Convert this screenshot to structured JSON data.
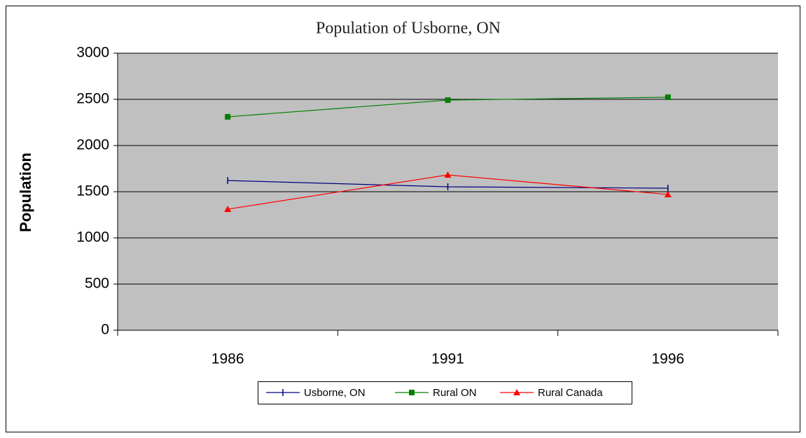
{
  "chart_data": {
    "type": "line",
    "title": "Population of Usborne, ON",
    "y_label": "Population",
    "categories": [
      "1986",
      "1991",
      "1996"
    ],
    "series": [
      {
        "name": "Usborne, ON",
        "color": "#000080",
        "marker": "plus",
        "values": [
          1621,
          1553,
          1538
        ]
      },
      {
        "name": "Rural ON",
        "color": "#008000",
        "marker": "square",
        "values": [
          2311,
          2492,
          2523
        ]
      },
      {
        "name": "Rural Canada",
        "color": "#ff0000",
        "marker": "triangle",
        "values": [
          1311,
          1682,
          1470
        ]
      }
    ],
    "ylim": [
      0,
      3000
    ],
    "yticks": [
      0,
      500,
      1000,
      1500,
      2000,
      2500,
      3000
    ],
    "grid": true,
    "plot_background": "#c0c0c0",
    "legend": "bottom"
  }
}
